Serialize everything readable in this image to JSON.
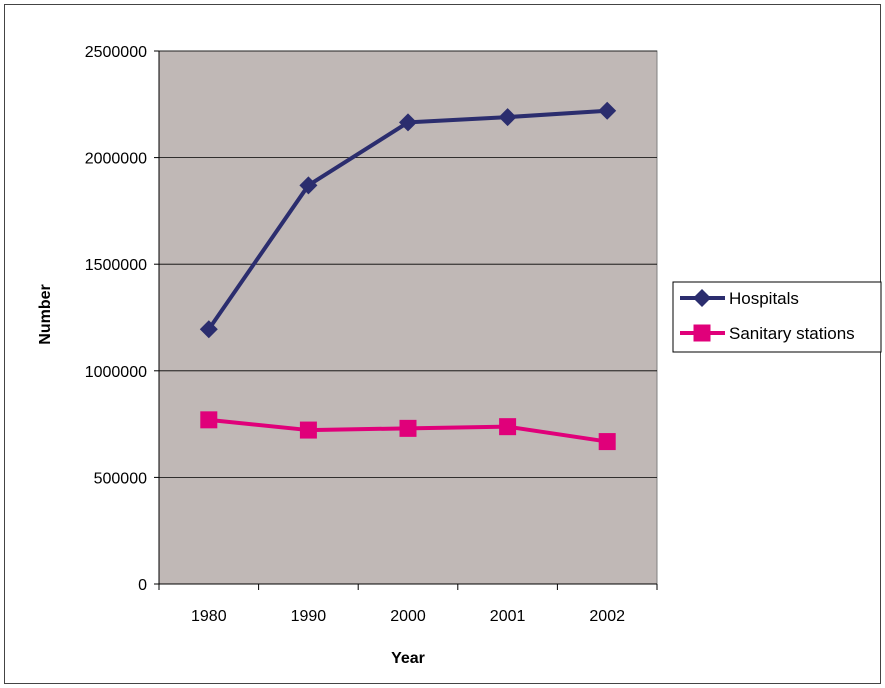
{
  "chart_data": {
    "type": "line",
    "title": "",
    "xlabel": "Year",
    "ylabel": "Number",
    "categories": [
      "1980",
      "1990",
      "2000",
      "2001",
      "2002"
    ],
    "yticks": [
      "0",
      "500000",
      "1000000",
      "1500000",
      "2000000",
      "2500000"
    ],
    "ylim": [
      0,
      2500000
    ],
    "grid": true,
    "legend_position": "right",
    "plot_background": "#c0b8b6",
    "series": [
      {
        "name": "Hospitals",
        "values": [
          1195000,
          1870000,
          2165000,
          2190000,
          2220000
        ],
        "color": "#2b2d6e",
        "marker": "diamond"
      },
      {
        "name": "Sanitary stations",
        "values": [
          770000,
          722000,
          730000,
          738000,
          668000
        ],
        "color": "#e0007a",
        "marker": "square"
      }
    ]
  }
}
